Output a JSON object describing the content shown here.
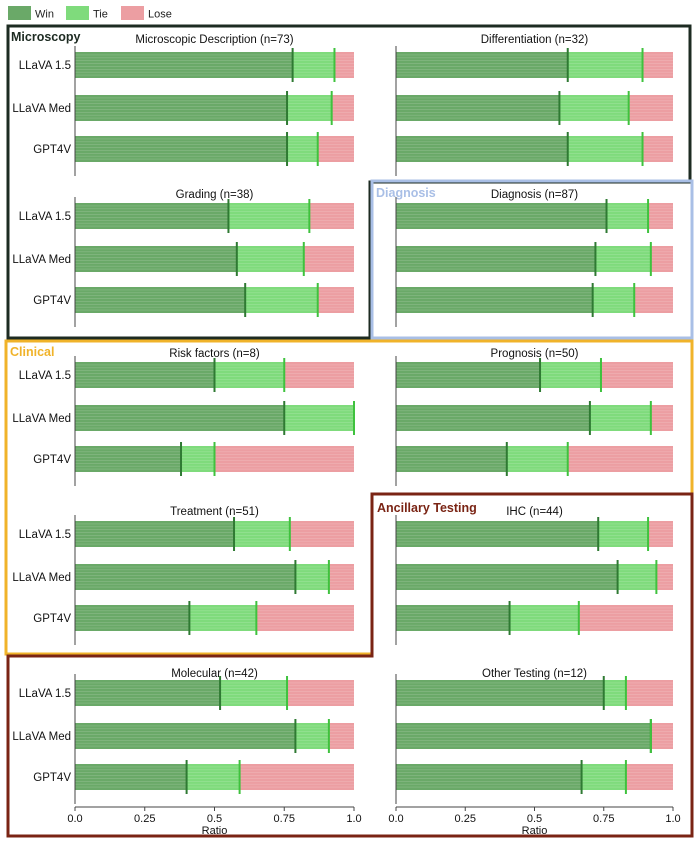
{
  "legend": [
    {
      "label": "Win",
      "color": "#6aa968"
    },
    {
      "label": "Tie",
      "color": "#7fdb7c"
    },
    {
      "label": "Lose",
      "color": "#ec9ea2"
    }
  ],
  "colors": {
    "win": "#6aa968",
    "tie": "#7fdb7c",
    "lose": "#ec9ea2",
    "win_marker": "#2f7a33",
    "tie_marker": "#3fc23e",
    "microscopy": "#1d2b22",
    "diagnosis": "#a9bfe6",
    "clinical": "#f0b32a",
    "ancillary": "#7a2414"
  },
  "groups": [
    {
      "key": "microscopy",
      "label": "Microscopy",
      "color": "#1d2b22"
    },
    {
      "key": "diagnosis",
      "label": "Diagnosis",
      "color": "#a9bfe6"
    },
    {
      "key": "clinical",
      "label": "Clinical",
      "color": "#f0b32a"
    },
    {
      "key": "ancillary",
      "label": "Ancillary Testing",
      "color": "#7a2414"
    }
  ],
  "chart_data": {
    "type": "bar",
    "subtype": "horizontal stacked ratio bars (Win / Tie / Lose), with per-model mean markers",
    "xlabel": "Ratio",
    "xlim": [
      0,
      1
    ],
    "xticks": [
      "0.0",
      "0.25",
      "0.5",
      "0.75",
      "1.0"
    ],
    "models": [
      "LLaVA 1.5",
      "LLaVA Med",
      "GPT4V"
    ],
    "panels": [
      {
        "title": "Microscopic Description (n=73)",
        "group": "microscopy",
        "series": [
          {
            "model": "LLaVA 1.5",
            "win": 0.78,
            "tie": 0.15,
            "lose": 0.07
          },
          {
            "model": "LLaVA Med",
            "win": 0.76,
            "tie": 0.16,
            "lose": 0.08
          },
          {
            "model": "GPT4V",
            "win": 0.76,
            "tie": 0.11,
            "lose": 0.13
          }
        ]
      },
      {
        "title": "Differentiation (n=32)",
        "group": "microscopy",
        "series": [
          {
            "model": "LLaVA 1.5",
            "win": 0.62,
            "tie": 0.27,
            "lose": 0.11
          },
          {
            "model": "LLaVA Med",
            "win": 0.59,
            "tie": 0.25,
            "lose": 0.16
          },
          {
            "model": "GPT4V",
            "win": 0.62,
            "tie": 0.27,
            "lose": 0.11
          }
        ]
      },
      {
        "title": "Grading (n=38)",
        "group": "microscopy",
        "series": [
          {
            "model": "LLaVA 1.5",
            "win": 0.55,
            "tie": 0.29,
            "lose": 0.16
          },
          {
            "model": "LLaVA Med",
            "win": 0.58,
            "tie": 0.24,
            "lose": 0.18
          },
          {
            "model": "GPT4V",
            "win": 0.61,
            "tie": 0.26,
            "lose": 0.13
          }
        ]
      },
      {
        "title": "Diagnosis (n=87)",
        "group": "diagnosis",
        "series": [
          {
            "model": "LLaVA 1.5",
            "win": 0.76,
            "tie": 0.15,
            "lose": 0.09
          },
          {
            "model": "LLaVA Med",
            "win": 0.72,
            "tie": 0.2,
            "lose": 0.08
          },
          {
            "model": "GPT4V",
            "win": 0.71,
            "tie": 0.15,
            "lose": 0.14
          }
        ]
      },
      {
        "title": "Risk factors (n=8)",
        "group": "clinical",
        "series": [
          {
            "model": "LLaVA 1.5",
            "win": 0.5,
            "tie": 0.25,
            "lose": 0.25
          },
          {
            "model": "LLaVA Med",
            "win": 0.75,
            "tie": 0.25,
            "lose": 0.0
          },
          {
            "model": "GPT4V",
            "win": 0.38,
            "tie": 0.12,
            "lose": 0.5
          }
        ]
      },
      {
        "title": "Prognosis (n=50)",
        "group": "clinical",
        "series": [
          {
            "model": "LLaVA 1.5",
            "win": 0.52,
            "tie": 0.22,
            "lose": 0.26
          },
          {
            "model": "LLaVA Med",
            "win": 0.7,
            "tie": 0.22,
            "lose": 0.08
          },
          {
            "model": "GPT4V",
            "win": 0.4,
            "tie": 0.22,
            "lose": 0.38
          }
        ]
      },
      {
        "title": "Treatment (n=51)",
        "group": "clinical",
        "series": [
          {
            "model": "LLaVA 1.5",
            "win": 0.57,
            "tie": 0.2,
            "lose": 0.23
          },
          {
            "model": "LLaVA Med",
            "win": 0.79,
            "tie": 0.12,
            "lose": 0.09
          },
          {
            "model": "GPT4V",
            "win": 0.41,
            "tie": 0.24,
            "lose": 0.35
          }
        ]
      },
      {
        "title": "IHC (n=44)",
        "group": "ancillary",
        "series": [
          {
            "model": "LLaVA 1.5",
            "win": 0.73,
            "tie": 0.18,
            "lose": 0.09
          },
          {
            "model": "LLaVA Med",
            "win": 0.8,
            "tie": 0.14,
            "lose": 0.06
          },
          {
            "model": "GPT4V",
            "win": 0.41,
            "tie": 0.25,
            "lose": 0.34
          }
        ]
      },
      {
        "title": "Molecular (n=42)",
        "group": "ancillary",
        "series": [
          {
            "model": "LLaVA 1.5",
            "win": 0.52,
            "tie": 0.24,
            "lose": 0.24
          },
          {
            "model": "LLaVA Med",
            "win": 0.79,
            "tie": 0.12,
            "lose": 0.09
          },
          {
            "model": "GPT4V",
            "win": 0.4,
            "tie": 0.19,
            "lose": 0.41
          }
        ]
      },
      {
        "title": "Other Testing (n=12)",
        "group": "ancillary",
        "series": [
          {
            "model": "LLaVA 1.5",
            "win": 0.75,
            "tie": 0.08,
            "lose": 0.17
          },
          {
            "model": "LLaVA Med",
            "win": 0.92,
            "tie": 0.0,
            "lose": 0.08
          },
          {
            "model": "GPT4V",
            "win": 0.67,
            "tie": 0.16,
            "lose": 0.17
          }
        ]
      }
    ]
  }
}
